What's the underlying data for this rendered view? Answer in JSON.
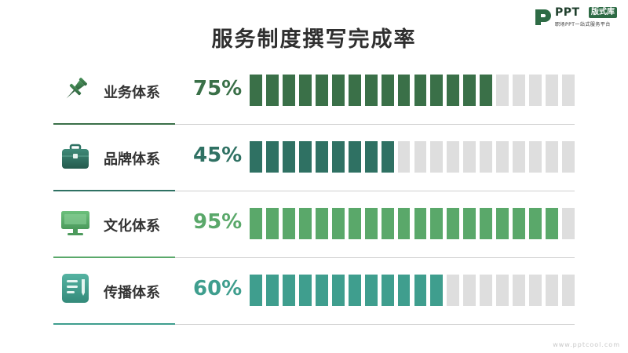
{
  "title": "服务制度撰写完成率",
  "logo": {
    "brand": "PPT",
    "tag": "版式库",
    "subtitle": "职场PPT一站式服务平台"
  },
  "watermark": "www.pptcool.com",
  "colors": {
    "empty_segment": "#dedede",
    "label_text": "#333333"
  },
  "rows": [
    {
      "label": "业务体系",
      "percent_text": "75%",
      "percent": 75,
      "color": "#3a7048",
      "icon": "pushpin-icon"
    },
    {
      "label": "品牌体系",
      "percent_text": "45%",
      "percent": 45,
      "color": "#2f7163",
      "icon": "briefcase-icon"
    },
    {
      "label": "文化体系",
      "percent_text": "95%",
      "percent": 95,
      "color": "#5aa86a",
      "icon": "monitor-icon"
    },
    {
      "label": "传播体系",
      "percent_text": "60%",
      "percent": 60,
      "color": "#3f9e8e",
      "icon": "document-icon"
    }
  ],
  "chart_data": {
    "type": "bar",
    "title": "服务制度撰写完成率",
    "categories": [
      "业务体系",
      "品牌体系",
      "文化体系",
      "传播体系"
    ],
    "values": [
      75,
      45,
      95,
      60
    ],
    "ylim": [
      0,
      100
    ],
    "segments_per_bar": 20,
    "grid": false
  }
}
